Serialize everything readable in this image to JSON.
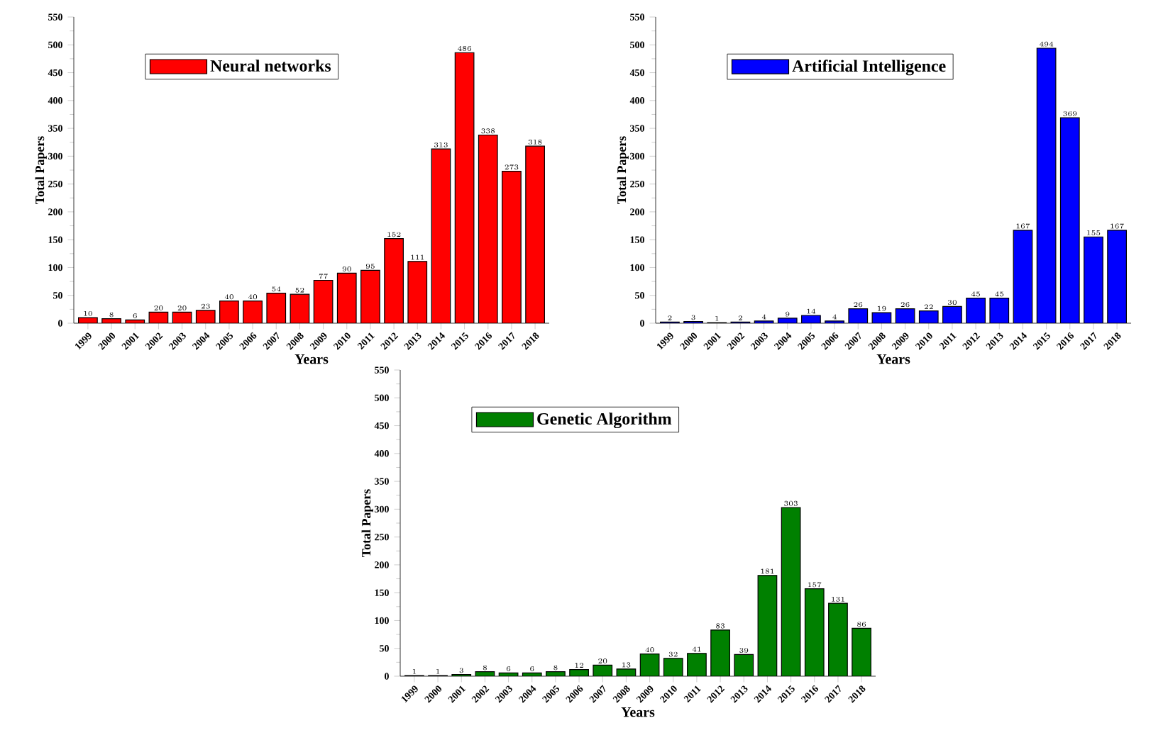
{
  "chart_data": [
    {
      "type": "bar",
      "xlabel": "Years",
      "ylabel": "Total Papers",
      "categories": [
        "1999",
        "2000",
        "2001",
        "2002",
        "2003",
        "2004",
        "2005",
        "2006",
        "2007",
        "2008",
        "2009",
        "2010",
        "2011",
        "2012",
        "2013",
        "2014",
        "2015",
        "2016",
        "2017",
        "2018"
      ],
      "series": [
        {
          "name": "Neural networks",
          "color": "#ff0000",
          "values": [
            10,
            8,
            6,
            20,
            20,
            23,
            40,
            40,
            54,
            52,
            77,
            90,
            95,
            152,
            111,
            313,
            486,
            338,
            273,
            318
          ]
        }
      ],
      "ylim": [
        0,
        550
      ],
      "yticks": [
        0,
        50,
        100,
        150,
        200,
        250,
        300,
        350,
        400,
        450,
        500,
        550
      ],
      "data_labels": true,
      "legend": "top left",
      "grid": false
    },
    {
      "type": "bar",
      "xlabel": "Years",
      "ylabel": "Total Papers",
      "categories": [
        "1999",
        "2000",
        "2001",
        "2002",
        "2003",
        "2004",
        "2005",
        "2006",
        "2007",
        "2008",
        "2009",
        "2010",
        "2011",
        "2012",
        "2013",
        "2014",
        "2015",
        "2016",
        "2017",
        "2018"
      ],
      "series": [
        {
          "name": "Artificial Intelligence",
          "color": "#0000ff",
          "values": [
            2,
            3,
            1,
            2,
            4,
            9,
            14,
            4,
            26,
            19,
            26,
            22,
            30,
            45,
            45,
            167,
            494,
            369,
            155,
            167
          ]
        }
      ],
      "ylim": [
        0,
        550
      ],
      "yticks": [
        0,
        50,
        100,
        150,
        200,
        250,
        300,
        350,
        400,
        450,
        500,
        550
      ],
      "data_labels": true,
      "legend": "top left",
      "grid": false
    },
    {
      "type": "bar",
      "xlabel": "Years",
      "ylabel": "Total Papers",
      "categories": [
        "1999",
        "2000",
        "2001",
        "2002",
        "2003",
        "2004",
        "2005",
        "2006",
        "2007",
        "2008",
        "2009",
        "2010",
        "2011",
        "2012",
        "2013",
        "2014",
        "2015",
        "2016",
        "2017",
        "2018"
      ],
      "series": [
        {
          "name": "Genetic Algorithm",
          "color": "#008000",
          "values": [
            1,
            1,
            3,
            8,
            6,
            6,
            8,
            12,
            20,
            13,
            40,
            32,
            41,
            83,
            39,
            181,
            303,
            157,
            131,
            86
          ]
        }
      ],
      "ylim": [
        0,
        550
      ],
      "yticks": [
        0,
        50,
        100,
        150,
        200,
        250,
        300,
        350,
        400,
        450,
        500,
        550
      ],
      "data_labels": true,
      "legend": "top left",
      "grid": false
    }
  ]
}
